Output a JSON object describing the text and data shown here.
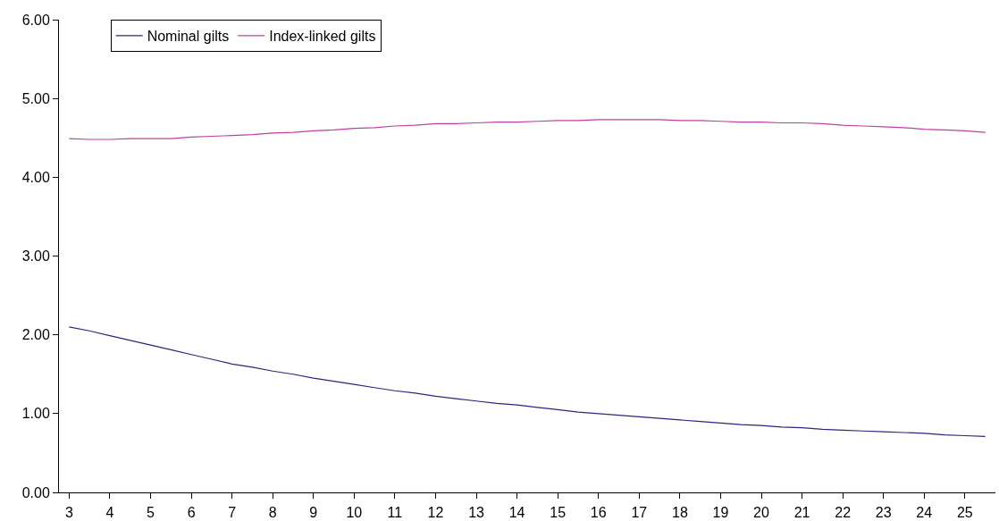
{
  "chart_data": {
    "type": "line",
    "legend": "top left",
    "line_style": "solid",
    "grid": false,
    "x": [
      3,
      3.5,
      4,
      4.5,
      5,
      5.5,
      6,
      6.5,
      7,
      7.5,
      8,
      8.5,
      9,
      9.5,
      10,
      10.5,
      11,
      11.5,
      12,
      12.5,
      13,
      13.5,
      14,
      14.5,
      15,
      15.5,
      16,
      16.5,
      17,
      17.5,
      18,
      18.5,
      19,
      19.5,
      20,
      20.5,
      21,
      21.5,
      22,
      22.5,
      23,
      23.5,
      24,
      24.5,
      25,
      25.5
    ],
    "series": [
      {
        "name": "Nominal gilts",
        "color": "#28287f",
        "values": [
          2.1,
          2.05,
          1.99,
          1.93,
          1.87,
          1.81,
          1.75,
          1.69,
          1.63,
          1.59,
          1.54,
          1.5,
          1.45,
          1.41,
          1.37,
          1.33,
          1.29,
          1.26,
          1.22,
          1.19,
          1.16,
          1.13,
          1.11,
          1.08,
          1.05,
          1.02,
          1.0,
          0.98,
          0.96,
          0.94,
          0.92,
          0.9,
          0.88,
          0.86,
          0.85,
          0.83,
          0.82,
          0.8,
          0.79,
          0.78,
          0.77,
          0.76,
          0.75,
          0.73,
          0.72,
          0.71
        ]
      },
      {
        "name": "Index-linked gilts",
        "color": "#c040a0",
        "values": [
          4.49,
          4.48,
          4.48,
          4.49,
          4.49,
          4.49,
          4.51,
          4.52,
          4.53,
          4.54,
          4.56,
          4.57,
          4.59,
          4.6,
          4.62,
          4.63,
          4.65,
          4.66,
          4.68,
          4.68,
          4.69,
          4.7,
          4.7,
          4.71,
          4.72,
          4.72,
          4.73,
          4.73,
          4.73,
          4.73,
          4.72,
          4.72,
          4.71,
          4.7,
          4.7,
          4.69,
          4.69,
          4.68,
          4.66,
          4.65,
          4.64,
          4.63,
          4.61,
          4.6,
          4.59,
          4.57
        ]
      }
    ],
    "xlim": [
      2.75,
      25.75
    ],
    "xticks": [
      3,
      4,
      5,
      6,
      7,
      8,
      9,
      10,
      11,
      12,
      13,
      14,
      15,
      16,
      17,
      18,
      19,
      20,
      21,
      22,
      23,
      24,
      25
    ],
    "ylim": [
      0,
      6
    ],
    "yticks": [
      {
        "value": 0,
        "label": "0.00"
      },
      {
        "value": 1,
        "label": "1.00"
      },
      {
        "value": 2,
        "label": "2.00"
      },
      {
        "value": 3,
        "label": "3.00"
      },
      {
        "value": 4,
        "label": "4.00"
      },
      {
        "value": 5,
        "label": "5.00"
      },
      {
        "value": 6,
        "label": "6.00"
      }
    ]
  }
}
